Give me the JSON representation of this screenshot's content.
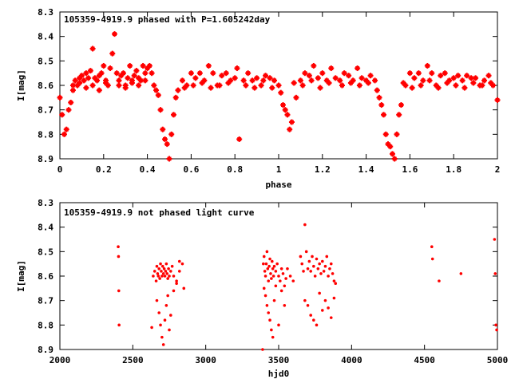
{
  "colors": {
    "points": "#ff0000",
    "axes": "#000000",
    "background": "#ffffff"
  },
  "chart_data": [
    {
      "type": "scatter",
      "title": "105359-4919.9 phased with P=1.605242day",
      "xlabel": "phase",
      "ylabel": "I[mag]",
      "xlim": [
        0,
        2
      ],
      "ylim": [
        8.3,
        8.9
      ],
      "y_inverted": true,
      "grid": false,
      "x_ticks": [
        "0",
        "0.2",
        "0.4",
        "0.6",
        "0.8",
        "1",
        "1.2",
        "1.4",
        "1.6",
        "1.8",
        "2"
      ],
      "y_ticks": [
        "8.3",
        "8.4",
        "8.5",
        "8.6",
        "8.7",
        "8.8",
        "8.9"
      ],
      "x_tick_values": [
        0,
        0.2,
        0.4,
        0.6,
        0.8,
        1.0,
        1.2,
        1.4,
        1.6,
        1.8,
        2.0
      ],
      "y_tick_values": [
        8.3,
        8.4,
        8.5,
        8.6,
        8.7,
        8.8,
        8.9
      ],
      "series": [
        {
          "x": [
            0.0,
            0.01,
            0.02,
            0.03,
            0.04,
            0.05,
            0.06,
            0.07,
            0.08,
            0.09,
            0.1,
            0.11,
            0.12,
            0.13,
            0.14,
            0.15,
            0.16,
            0.17,
            0.18,
            0.19,
            0.2,
            0.21,
            0.22,
            0.23,
            0.24,
            0.25,
            0.26,
            0.27,
            0.28,
            0.29,
            0.3,
            0.31,
            0.32,
            0.33,
            0.34,
            0.35,
            0.36,
            0.37,
            0.38,
            0.39,
            0.4,
            0.41,
            0.42,
            0.43,
            0.44,
            0.45,
            0.46,
            0.47,
            0.48,
            0.49,
            0.5,
            0.51,
            0.52,
            0.53,
            0.54,
            0.56,
            0.58,
            0.6,
            0.62,
            0.64,
            0.66,
            0.68,
            0.7,
            0.72,
            0.74,
            0.76,
            0.78,
            0.8,
            0.81,
            0.82,
            0.84,
            0.86,
            0.88,
            0.9,
            0.92,
            0.94,
            0.96,
            0.98,
            1.0,
            1.01,
            1.02,
            1.03,
            1.04,
            1.05,
            1.06,
            1.08,
            1.1,
            1.12,
            1.14,
            1.16,
            1.18,
            1.2,
            1.22,
            1.24,
            1.26,
            1.28,
            1.3,
            1.32,
            1.34,
            1.36,
            1.38,
            1.4,
            1.42,
            1.44,
            1.45,
            1.46,
            1.47,
            1.48,
            1.49,
            1.5,
            1.51,
            1.52,
            1.53,
            1.54,
            1.55,
            1.56,
            1.58,
            1.6,
            1.62,
            1.64,
            1.66,
            1.68,
            1.7,
            1.72,
            1.74,
            1.76,
            1.78,
            1.8,
            1.82,
            1.84,
            1.86,
            1.88,
            1.9,
            1.92,
            1.94,
            1.96,
            1.98,
            2.0,
            0.06,
            0.09,
            0.12,
            0.15,
            0.18,
            0.21,
            0.27,
            0.3,
            0.33,
            0.36,
            0.39,
            0.57,
            0.61,
            0.65,
            0.69,
            0.73,
            0.77,
            0.85,
            0.89,
            0.93,
            0.97,
            1.07,
            1.11,
            1.15,
            1.19,
            1.23,
            1.29,
            1.33,
            1.37,
            1.41,
            1.57,
            1.61,
            1.65,
            1.69,
            1.73,
            1.77,
            1.81,
            1.85,
            1.89,
            1.93,
            1.97
          ],
          "y": [
            8.65,
            8.72,
            8.8,
            8.78,
            8.7,
            8.67,
            8.62,
            8.58,
            8.6,
            8.57,
            8.56,
            8.58,
            8.55,
            8.57,
            8.54,
            8.45,
            8.57,
            8.58,
            8.56,
            8.55,
            8.52,
            8.58,
            8.6,
            8.53,
            8.47,
            8.39,
            8.55,
            8.58,
            8.56,
            8.55,
            8.6,
            8.57,
            8.52,
            8.58,
            8.56,
            8.54,
            8.57,
            8.58,
            8.52,
            8.55,
            8.53,
            8.52,
            8.55,
            8.6,
            8.62,
            8.64,
            8.7,
            8.78,
            8.82,
            8.84,
            8.9,
            8.8,
            8.72,
            8.65,
            8.62,
            8.58,
            8.6,
            8.55,
            8.57,
            8.55,
            8.58,
            8.52,
            8.55,
            8.6,
            8.56,
            8.55,
            8.58,
            8.57,
            8.53,
            8.82,
            8.58,
            8.55,
            8.58,
            8.57,
            8.6,
            8.56,
            8.57,
            8.58,
            8.6,
            8.63,
            8.68,
            8.7,
            8.72,
            8.78,
            8.75,
            8.65,
            8.58,
            8.55,
            8.56,
            8.52,
            8.57,
            8.55,
            8.58,
            8.53,
            8.57,
            8.58,
            8.55,
            8.56,
            8.58,
            8.53,
            8.57,
            8.58,
            8.56,
            8.58,
            8.62,
            8.65,
            8.68,
            8.72,
            8.8,
            8.84,
            8.85,
            8.88,
            8.9,
            8.8,
            8.72,
            8.68,
            8.6,
            8.55,
            8.57,
            8.55,
            8.58,
            8.52,
            8.55,
            8.6,
            8.56,
            8.55,
            8.58,
            8.57,
            8.56,
            8.58,
            8.56,
            8.57,
            8.57,
            8.6,
            8.58,
            8.56,
            8.6,
            8.66,
            8.6,
            8.59,
            8.61,
            8.6,
            8.62,
            8.59,
            8.6,
            8.61,
            8.59,
            8.6,
            8.58,
            8.61,
            8.6,
            8.59,
            8.61,
            8.6,
            8.59,
            8.6,
            8.61,
            8.58,
            8.61,
            8.59,
            8.6,
            8.58,
            8.61,
            8.59,
            8.6,
            8.59,
            8.6,
            8.59,
            8.59,
            8.61,
            8.6,
            8.58,
            8.61,
            8.59,
            8.6,
            8.61,
            8.59,
            8.6,
            8.59
          ]
        }
      ]
    },
    {
      "type": "scatter",
      "title": "105359-4919.9 not phased light curve",
      "xlabel": "hjd0",
      "ylabel": "I[mag]",
      "xlim": [
        2000,
        5000
      ],
      "ylim": [
        8.3,
        8.9
      ],
      "y_inverted": true,
      "grid": false,
      "x_ticks": [
        "2000",
        "2500",
        "3000",
        "3500",
        "4000",
        "4500",
        "5000"
      ],
      "y_ticks": [
        "8.3",
        "8.4",
        "8.5",
        "8.6",
        "8.7",
        "8.8",
        "8.9"
      ],
      "x_tick_values": [
        2000,
        2500,
        3000,
        3500,
        4000,
        4500,
        5000
      ],
      "y_tick_values": [
        8.3,
        8.4,
        8.5,
        8.6,
        8.7,
        8.8,
        8.9
      ],
      "series": [
        {
          "x": [
            2400,
            2402,
            2404,
            2406,
            2630,
            2640,
            2650,
            2660,
            2665,
            2670,
            2675,
            2680,
            2685,
            2690,
            2695,
            2700,
            2705,
            2710,
            2715,
            2720,
            2725,
            2730,
            2735,
            2740,
            2745,
            2750,
            2760,
            2770,
            2780,
            2800,
            2820,
            2840,
            2850,
            2665,
            2680,
            2690,
            2700,
            2710,
            2720,
            2730,
            2740,
            2750,
            2760,
            2780,
            2800,
            2820,
            3390,
            3395,
            3400,
            3405,
            3410,
            3415,
            3420,
            3425,
            3430,
            3435,
            3440,
            3445,
            3450,
            3455,
            3460,
            3465,
            3470,
            3480,
            3490,
            3500,
            3510,
            3520,
            3530,
            3540,
            3550,
            3400,
            3410,
            3420,
            3430,
            3440,
            3450,
            3460,
            3470,
            3480,
            3500,
            3520,
            3540,
            3560,
            3580,
            3600,
            3650,
            3660,
            3670,
            3680,
            3690,
            3700,
            3710,
            3720,
            3730,
            3740,
            3750,
            3760,
            3770,
            3780,
            3790,
            3800,
            3810,
            3820,
            3830,
            3840,
            3850,
            3860,
            3870,
            3880,
            3890,
            3680,
            3700,
            3720,
            3740,
            3760,
            3780,
            3800,
            3820,
            3840,
            3860,
            3880,
            4550,
            4555,
            4600,
            4750,
            4980,
            4985,
            4990,
            4995
          ],
          "y": [
            8.48,
            8.52,
            8.66,
            8.8,
            8.81,
            8.6,
            8.58,
            8.62,
            8.56,
            8.59,
            8.6,
            8.57,
            8.61,
            8.55,
            8.58,
            8.6,
            8.56,
            8.59,
            8.57,
            8.6,
            8.58,
            8.55,
            8.59,
            8.61,
            8.57,
            8.6,
            8.58,
            8.56,
            8.6,
            8.62,
            8.58,
            8.55,
            8.65,
            8.7,
            8.75,
            8.8,
            8.85,
            8.88,
            8.78,
            8.72,
            8.68,
            8.82,
            8.76,
            8.66,
            8.63,
            8.54,
            8.9,
            8.55,
            8.52,
            8.58,
            8.6,
            8.55,
            8.5,
            8.57,
            8.62,
            8.56,
            8.53,
            8.59,
            8.61,
            8.54,
            8.57,
            8.6,
            8.56,
            8.58,
            8.55,
            8.6,
            8.62,
            8.57,
            8.59,
            8.64,
            8.61,
            8.65,
            8.68,
            8.72,
            8.75,
            8.78,
            8.82,
            8.85,
            8.7,
            8.64,
            8.8,
            8.66,
            8.72,
            8.57,
            8.6,
            8.62,
            8.52,
            8.55,
            8.58,
            8.39,
            8.5,
            8.57,
            8.54,
            8.58,
            8.52,
            8.56,
            8.6,
            8.53,
            8.57,
            8.55,
            8.59,
            8.54,
            8.58,
            8.56,
            8.52,
            8.6,
            8.57,
            8.55,
            8.59,
            8.62,
            8.63,
            8.7,
            8.72,
            8.76,
            8.78,
            8.8,
            8.67,
            8.74,
            8.7,
            8.73,
            8.77,
            8.69,
            8.48,
            8.53,
            8.62,
            8.59,
            8.45,
            8.59,
            8.8,
            8.82
          ]
        }
      ]
    }
  ]
}
